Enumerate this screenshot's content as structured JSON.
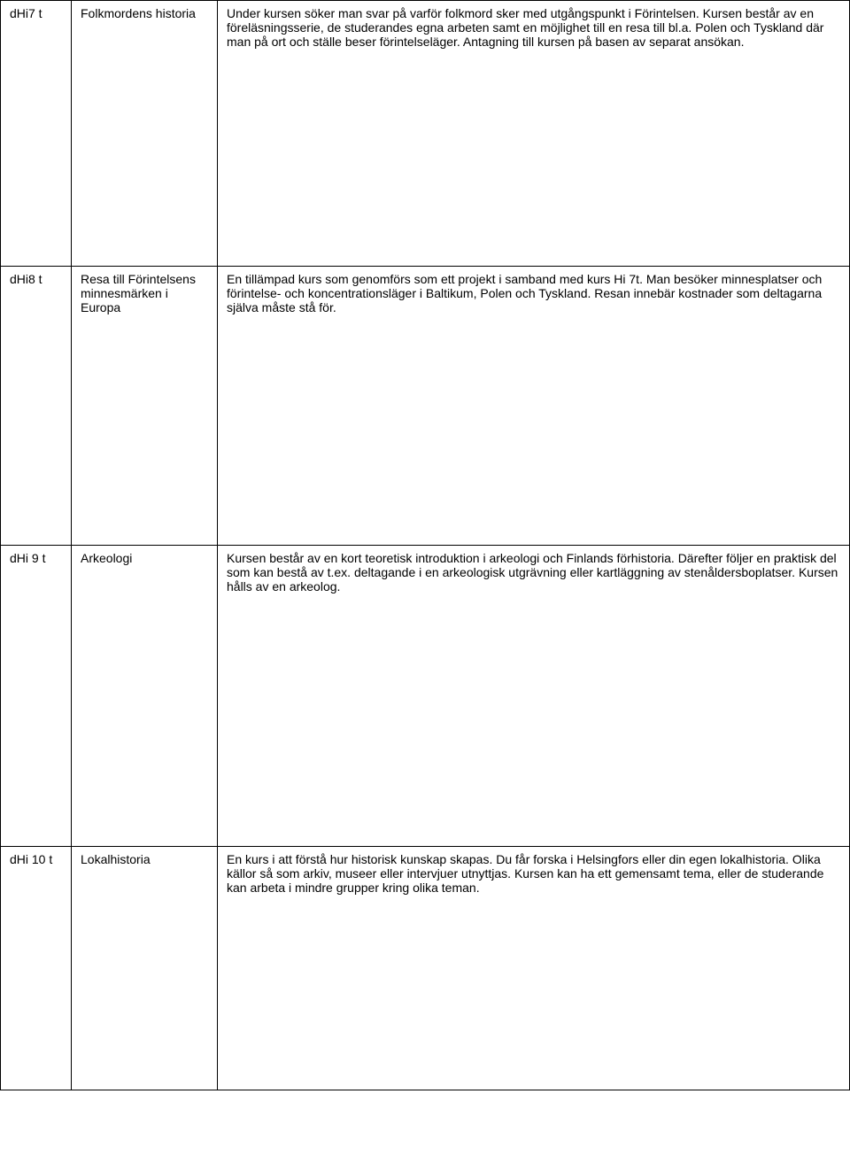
{
  "rows": [
    {
      "code": "dHi7 t",
      "title": "Folkmordens historia",
      "desc": "Under kursen söker man svar på varför folkmord sker med utgångspunkt i Förintelsen. Kursen består av en föreläsningsserie, de studerandes egna arbeten samt en möjlighet till en resa till bl.a. Polen och Tyskland där man på ort och ställe beser förintelseläger. Antagning till kursen på basen av separat ansökan."
    },
    {
      "code": "dHi8 t",
      "title": "Resa till Förintelsens minnesmärken i Europa",
      "desc": "En tillämpad kurs som genomförs som ett projekt i samband med kurs Hi 7t. Man besöker minnesplatser och förintelse- och koncentrationsläger i Baltikum, Polen och Tyskland. Resan innebär kostnader som deltagarna själva måste stå för."
    },
    {
      "code": "dHi 9 t",
      "title": "Arkeologi",
      "desc": "Kursen består av en kort teoretisk introduktion i arkeologi och Finlands förhistoria. Därefter följer en praktisk del som kan bestå av t.ex. deltagande i en arkeologisk utgrävning eller kartläggning av stenåldersboplatser. Kursen hålls av en arkeolog."
    },
    {
      "code": "dHi 10 t",
      "title": "Lokalhistoria",
      "desc": "En kurs i att förstå hur historisk kunskap skapas. Du får forska i Helsingfors eller din egen lokalhistoria. Olika källor så som arkiv, museer eller intervjuer utnyttjas. Kursen kan ha ett gemensamt tema, eller de studerande kan arbeta i mindre grupper kring olika teman."
    }
  ]
}
